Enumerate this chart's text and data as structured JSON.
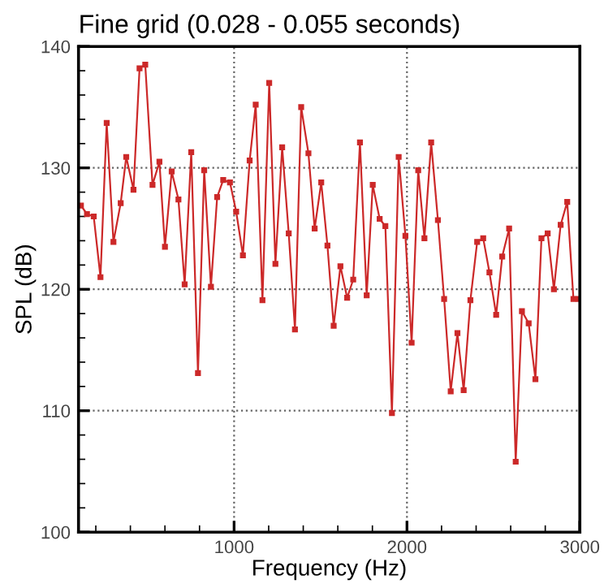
{
  "chart_data": {
    "type": "line",
    "title": "Fine grid (0.028 - 0.055 seconds)",
    "xlabel": "Frequency (Hz)",
    "ylabel": "SPL (dB)",
    "xlim": [
      100,
      3000
    ],
    "xticks": [
      1000,
      2000,
      3000
    ],
    "ylim": [
      100,
      140
    ],
    "yticks": [
      100,
      110,
      120,
      130,
      140
    ],
    "grid": true,
    "marker": "square",
    "line_style": "solid",
    "series": [
      {
        "color": "#cc2929",
        "x": [
          114,
          149,
          188,
          227,
          263,
          302,
          344,
          376,
          418,
          453,
          486,
          528,
          568,
          600,
          639,
          678,
          714,
          752,
          791,
          827,
          866,
          902,
          937,
          976,
          1012,
          1051,
          1090,
          1125,
          1164,
          1203,
          1239,
          1278,
          1316,
          1352,
          1388,
          1430,
          1466,
          1504,
          1540,
          1576,
          1615,
          1654,
          1689,
          1728,
          1767,
          1802,
          1842,
          1875,
          1913,
          1952,
          1991,
          2027,
          2065,
          2101,
          2140,
          2179,
          2215,
          2253,
          2292,
          2328,
          2367,
          2406,
          2441,
          2477,
          2516,
          2551,
          2591,
          2629,
          2665,
          2704,
          2743,
          2778,
          2814,
          2850,
          2889,
          2927,
          2963,
          2994
        ],
        "values": [
          126.9,
          126.2,
          126.0,
          121.0,
          133.7,
          123.9,
          127.1,
          130.9,
          128.2,
          138.2,
          138.5,
          128.6,
          130.5,
          123.5,
          129.7,
          127.4,
          120.4,
          131.3,
          113.1,
          129.8,
          120.2,
          127.6,
          129.0,
          128.8,
          126.4,
          122.8,
          130.6,
          135.2,
          119.1,
          137.0,
          122.1,
          131.7,
          124.6,
          116.7,
          135.0,
          131.2,
          125.0,
          128.8,
          123.6,
          117.0,
          121.9,
          119.3,
          120.8,
          132.1,
          119.5,
          128.6,
          125.8,
          125.2,
          109.8,
          130.9,
          124.4,
          115.6,
          129.8,
          124.2,
          132.1,
          125.7,
          119.2,
          111.6,
          116.4,
          111.7,
          119.1,
          123.9,
          124.2,
          121.4,
          117.9,
          122.7,
          125.0,
          105.8,
          118.2,
          117.2,
          112.6,
          124.2,
          124.6,
          120.0,
          125.3,
          127.2,
          119.2,
          119.2
        ]
      }
    ]
  }
}
